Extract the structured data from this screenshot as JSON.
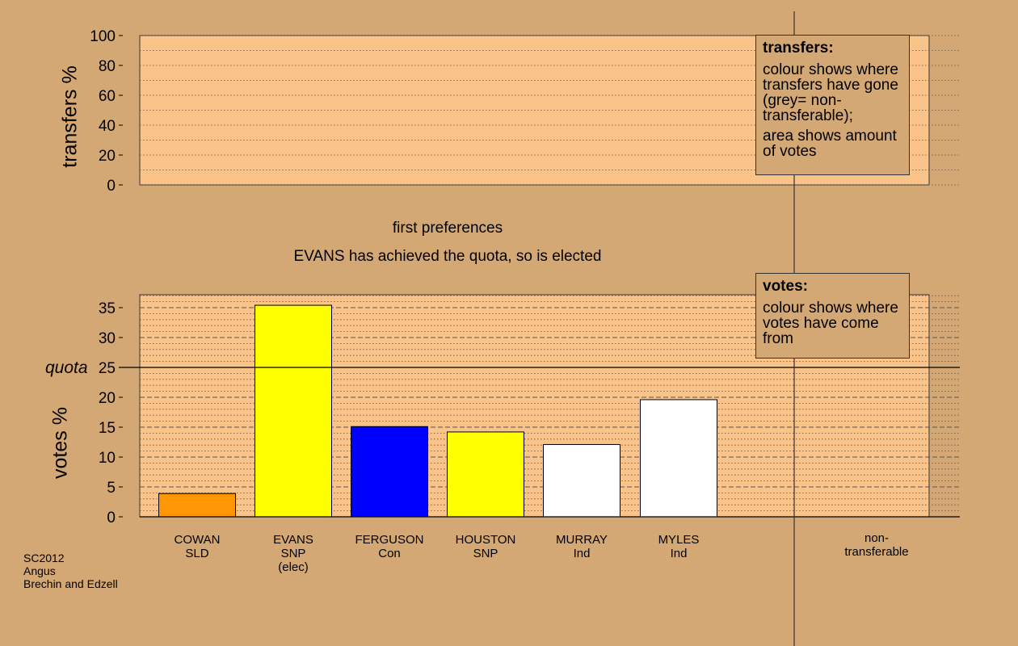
{
  "subtitle": "first preferences",
  "status_text": "EVANS has achieved the quota, so is elected",
  "footer": [
    "SC2012",
    "Angus",
    "Brechin and Edzell"
  ],
  "legend_transfers": {
    "title": "transfers:",
    "p1": "colour shows where transfers have gone (grey= non-transferable);",
    "p2": "area shows amount of votes"
  },
  "legend_votes": {
    "title": "votes:",
    "p1": "colour shows where votes have come from"
  },
  "quota_label": "quota",
  "nontransferable_label": [
    "non-",
    "transferable"
  ],
  "colors": {
    "background": "#d4a874",
    "plot_fill": "#f9c38a",
    "SLD": "#ff9605",
    "SNP": "#ffff00",
    "Con": "#0000ff",
    "Ind": "#ffffff"
  },
  "chart_data": [
    {
      "type": "bar",
      "ylabel": "transfers %",
      "ylim": [
        0,
        100
      ],
      "yticks": [
        "0",
        "20",
        "40",
        "60",
        "80",
        "100"
      ],
      "series": []
    },
    {
      "type": "bar",
      "ylabel": "votes %",
      "ylim": [
        0,
        37
      ],
      "yticks": [
        "0",
        "5",
        "10",
        "15",
        "20",
        "25",
        "30",
        "35"
      ],
      "quota": 25,
      "categories": [
        {
          "name": "COWAN",
          "party": "SLD",
          "note": "",
          "value": 3.9,
          "color": "#ff9605"
        },
        {
          "name": "EVANS",
          "party": "SNP",
          "note": "(elec)",
          "value": 35.4,
          "color": "#ffff00"
        },
        {
          "name": "FERGUSON",
          "party": "Con",
          "note": "",
          "value": 15.1,
          "color": "#0000ff"
        },
        {
          "name": "HOUSTON",
          "party": "SNP",
          "note": "",
          "value": 14.2,
          "color": "#ffff00"
        },
        {
          "name": "MURRAY",
          "party": "Ind",
          "note": "",
          "value": 12.1,
          "color": "#ffffff"
        },
        {
          "name": "MYLES",
          "party": "Ind",
          "note": "",
          "value": 19.6,
          "color": "#ffffff"
        }
      ]
    }
  ]
}
